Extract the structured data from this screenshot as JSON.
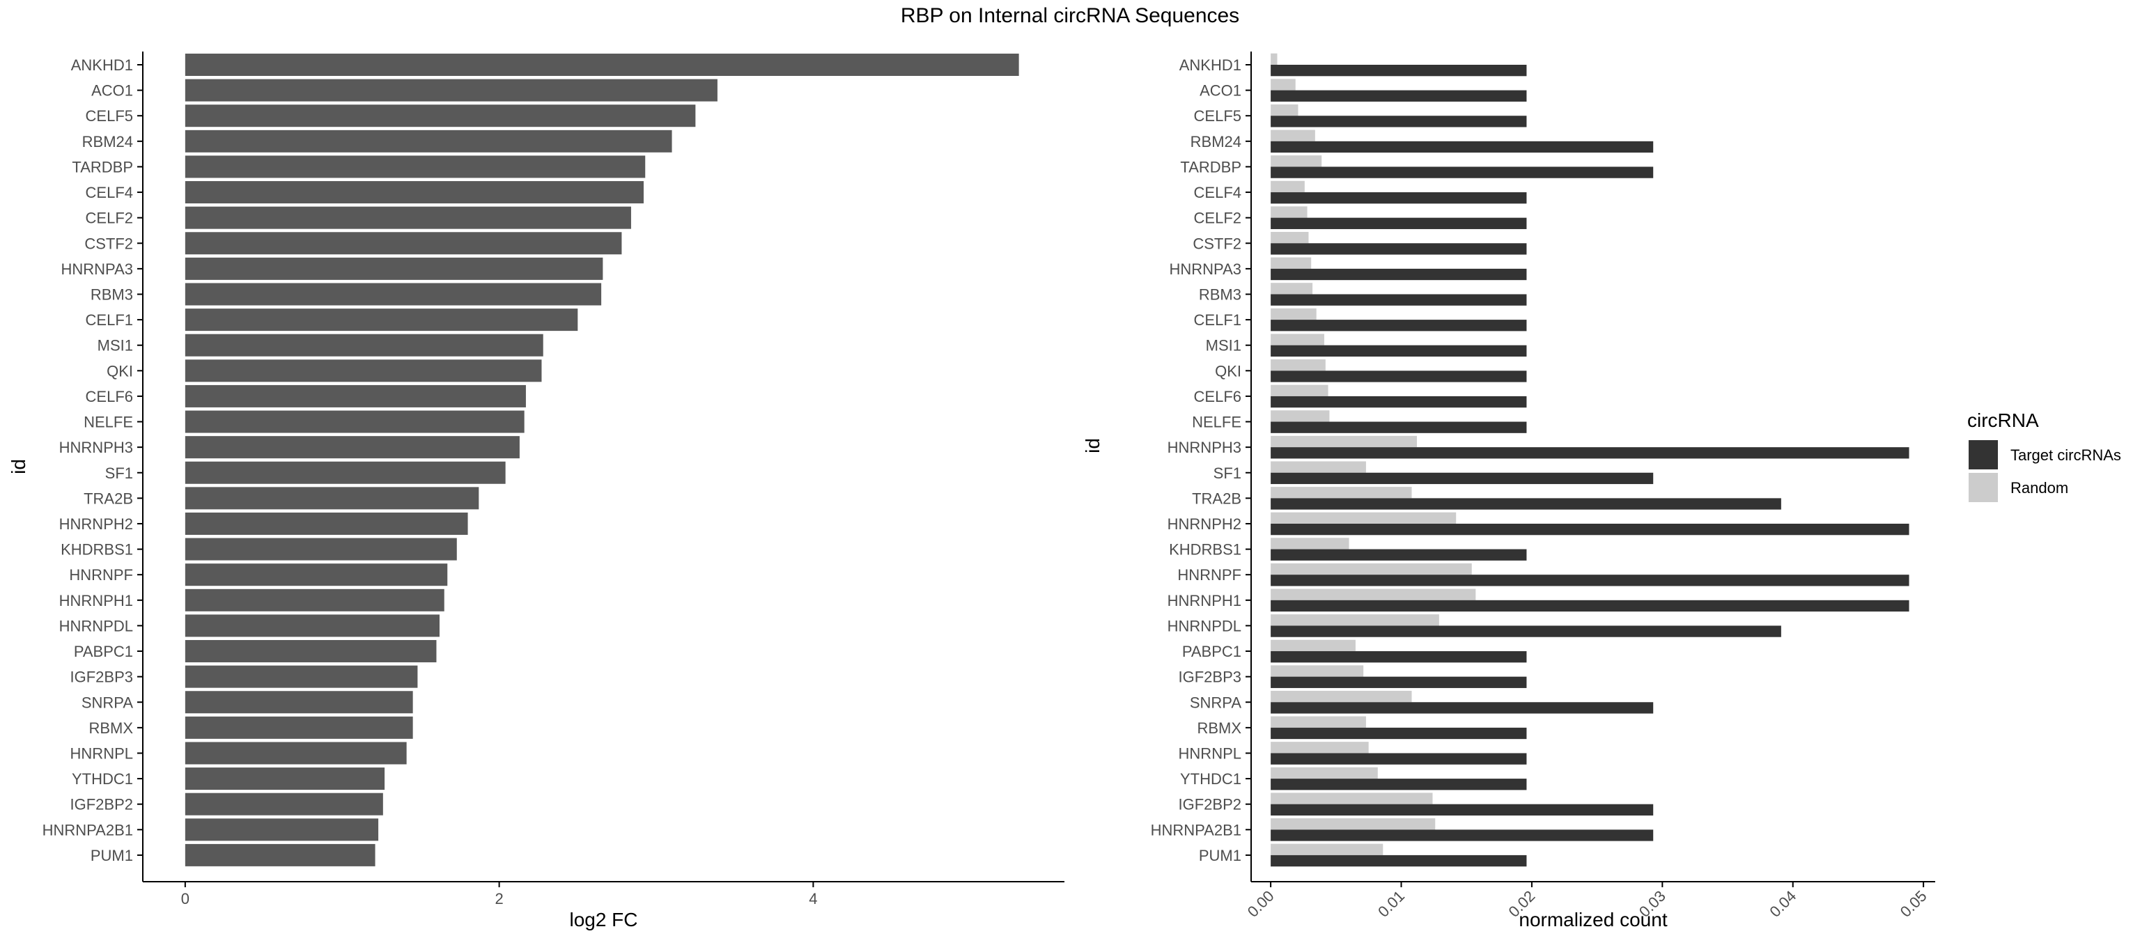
{
  "colors": {
    "left_bar": "#595959",
    "target": "#333333",
    "random": "#cccccc",
    "axis": "#000000",
    "text": "#4d4d4d",
    "title": "#000000"
  },
  "title": "RBP on Internal circRNA Sequences",
  "chart_data": [
    {
      "type": "bar",
      "orientation": "horizontal",
      "xlabel": "log2 FC",
      "ylabel": "id",
      "xlim": [
        -0.27,
        5.6
      ],
      "xticks": [
        0,
        2,
        4
      ],
      "categories": [
        "ANKHD1",
        "ACO1",
        "CELF5",
        "RBM24",
        "TARDBP",
        "CELF4",
        "CELF2",
        "CSTF2",
        "HNRNPA3",
        "RBM3",
        "CELF1",
        "MSI1",
        "QKI",
        "CELF6",
        "NELFE",
        "HNRNPH3",
        "SF1",
        "TRA2B",
        "HNRNPH2",
        "KHDRBS1",
        "HNRNPF",
        "HNRNPH1",
        "HNRNPDL",
        "PABPC1",
        "IGF2BP3",
        "SNRPA",
        "RBMX",
        "HNRNPL",
        "YTHDC1",
        "IGF2BP2",
        "HNRNPA2B1",
        "PUM1"
      ],
      "values": [
        5.31,
        3.39,
        3.25,
        3.1,
        2.93,
        2.92,
        2.84,
        2.78,
        2.66,
        2.65,
        2.5,
        2.28,
        2.27,
        2.17,
        2.16,
        2.13,
        2.04,
        1.87,
        1.8,
        1.73,
        1.67,
        1.65,
        1.62,
        1.6,
        1.48,
        1.45,
        1.45,
        1.41,
        1.27,
        1.26,
        1.23,
        1.21
      ]
    },
    {
      "type": "bar",
      "orientation": "horizontal",
      "grouped": true,
      "xlabel": "normalized count",
      "ylabel": "id",
      "xlim": [
        -0.0015,
        0.0509
      ],
      "xticks": [
        "0.00",
        "0.01",
        "0.02",
        "0.03",
        "0.04",
        "0.05"
      ],
      "xtick_values": [
        0,
        0.01,
        0.02,
        0.03,
        0.04,
        0.05
      ],
      "legend": {
        "title": "circRNA",
        "position": "right"
      },
      "categories": [
        "ANKHD1",
        "ACO1",
        "CELF5",
        "RBM24",
        "TARDBP",
        "CELF4",
        "CELF2",
        "CSTF2",
        "HNRNPA3",
        "RBM3",
        "CELF1",
        "MSI1",
        "QKI",
        "CELF6",
        "NELFE",
        "HNRNPH3",
        "SF1",
        "TRA2B",
        "HNRNPH2",
        "KHDRBS1",
        "HNRNPF",
        "HNRNPH1",
        "HNRNPDL",
        "PABPC1",
        "IGF2BP3",
        "SNRPA",
        "RBMX",
        "HNRNPL",
        "YTHDC1",
        "IGF2BP2",
        "HNRNPA2B1",
        "PUM1"
      ],
      "series": [
        {
          "name": "Target circRNAs",
          "values": [
            0.0196,
            0.0196,
            0.0196,
            0.0293,
            0.0293,
            0.0196,
            0.0196,
            0.0196,
            0.0196,
            0.0196,
            0.0196,
            0.0196,
            0.0196,
            0.0196,
            0.0196,
            0.0489,
            0.0293,
            0.0391,
            0.0489,
            0.0196,
            0.0489,
            0.0489,
            0.0391,
            0.0196,
            0.0196,
            0.0293,
            0.0196,
            0.0196,
            0.0196,
            0.0293,
            0.0293,
            0.0196
          ]
        },
        {
          "name": "Random",
          "values": [
            0.0005,
            0.0019,
            0.0021,
            0.0034,
            0.0039,
            0.0026,
            0.0028,
            0.0029,
            0.0031,
            0.0032,
            0.0035,
            0.0041,
            0.0042,
            0.0044,
            0.0045,
            0.0112,
            0.0073,
            0.0108,
            0.0142,
            0.006,
            0.0154,
            0.0157,
            0.0129,
            0.0065,
            0.0071,
            0.0108,
            0.0073,
            0.0075,
            0.0082,
            0.0124,
            0.0126,
            0.0086
          ]
        }
      ]
    }
  ]
}
